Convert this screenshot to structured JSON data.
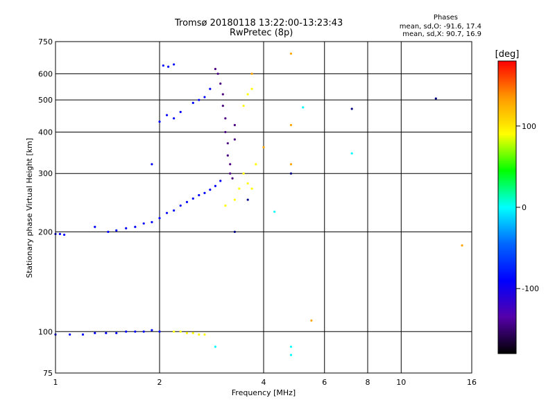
{
  "chart_data": {
    "type": "scatter",
    "title": "Tromsø 20180118 13:22:00-13:23:43",
    "subtitle": "RwPretec (8p)",
    "xlabel": "Frequency [MHz]",
    "ylabel": "Stationary phase Virtual Height [km]",
    "x_scale": "log",
    "y_scale": "log",
    "xlim": [
      1,
      16
    ],
    "ylim": [
      75,
      750
    ],
    "x_ticks": [
      1,
      2,
      4,
      6,
      8,
      10,
      16
    ],
    "y_ticks": [
      75,
      100,
      200,
      300,
      400,
      500,
      600,
      750
    ],
    "grid": true,
    "stats": {
      "header": "Phases",
      "line_o": "mean, sd,O: -91.6, 17.4",
      "line_x": "mean, sd,X:  90.7, 16.9"
    },
    "colorbar": {
      "label": "[deg]",
      "range": [
        -180,
        180
      ],
      "ticks": [
        100,
        0,
        -100
      ],
      "colors": [
        "#ff0000",
        "#ff9900",
        "#ffff00",
        "#00ff00",
        "#00ffff",
        "#0066ff",
        "#0000ff",
        "#5500aa",
        "#000000"
      ]
    },
    "series": [
      {
        "color": "blue",
        "points": [
          [
            1.0,
            197
          ],
          [
            1.03,
            197
          ],
          [
            1.06,
            196
          ],
          [
            1.3,
            207
          ],
          [
            1.42,
            200
          ],
          [
            1.5,
            202
          ],
          [
            1.6,
            205
          ],
          [
            1.7,
            207
          ],
          [
            1.8,
            212
          ],
          [
            1.9,
            214
          ],
          [
            2.0,
            220
          ],
          [
            2.1,
            228
          ],
          [
            2.2,
            232
          ],
          [
            2.3,
            240
          ],
          [
            2.4,
            246
          ],
          [
            2.5,
            252
          ],
          [
            2.6,
            258
          ],
          [
            2.7,
            262
          ],
          [
            2.8,
            268
          ],
          [
            2.9,
            275
          ],
          [
            3.0,
            285
          ],
          [
            1.0,
            98
          ],
          [
            1.1,
            98
          ],
          [
            1.2,
            98
          ],
          [
            1.3,
            99
          ],
          [
            1.4,
            99
          ],
          [
            1.5,
            99
          ],
          [
            1.6,
            100
          ],
          [
            1.7,
            100
          ],
          [
            1.8,
            100
          ],
          [
            1.9,
            101
          ],
          [
            2.0,
            100
          ],
          [
            2.0,
            430
          ],
          [
            2.1,
            450
          ],
          [
            2.2,
            440
          ],
          [
            2.3,
            460
          ],
          [
            2.05,
            635
          ],
          [
            2.12,
            630
          ],
          [
            2.2,
            640
          ],
          [
            1.9,
            320
          ],
          [
            2.5,
            490
          ],
          [
            2.6,
            500
          ],
          [
            2.7,
            510
          ],
          [
            2.8,
            540
          ]
        ]
      },
      {
        "color": "indigo",
        "points": [
          [
            2.9,
            620
          ],
          [
            2.95,
            600
          ],
          [
            3.0,
            560
          ],
          [
            3.05,
            520
          ],
          [
            3.05,
            480
          ],
          [
            3.1,
            440
          ],
          [
            3.1,
            400
          ],
          [
            3.15,
            370
          ],
          [
            3.15,
            340
          ],
          [
            3.2,
            320
          ],
          [
            3.2,
            300
          ],
          [
            3.25,
            290
          ],
          [
            3.3,
            380
          ],
          [
            3.3,
            420
          ]
        ]
      },
      {
        "color": "yellow",
        "points": [
          [
            2.2,
            100
          ],
          [
            2.3,
            100
          ],
          [
            2.4,
            99
          ],
          [
            2.5,
            99
          ],
          [
            2.6,
            98
          ],
          [
            2.7,
            98
          ],
          [
            3.1,
            240
          ],
          [
            3.3,
            250
          ],
          [
            3.4,
            270
          ],
          [
            3.5,
            300
          ],
          [
            3.6,
            280
          ],
          [
            3.7,
            270
          ],
          [
            3.8,
            320
          ],
          [
            3.5,
            480
          ],
          [
            3.6,
            520
          ],
          [
            3.7,
            540
          ]
        ]
      },
      {
        "color": "orange",
        "points": [
          [
            3.7,
            600
          ],
          [
            4.0,
            360
          ],
          [
            4.8,
            690
          ],
          [
            4.8,
            420
          ],
          [
            4.8,
            320
          ],
          [
            5.5,
            108
          ],
          [
            15.0,
            182
          ]
        ]
      },
      {
        "color": "cyan",
        "points": [
          [
            2.9,
            90
          ],
          [
            4.3,
            230
          ],
          [
            4.8,
            90
          ],
          [
            4.8,
            85
          ],
          [
            5.2,
            475
          ],
          [
            7.2,
            345
          ]
        ]
      },
      {
        "color": "navy",
        "points": [
          [
            3.3,
            200
          ],
          [
            3.6,
            250
          ],
          [
            4.8,
            300
          ],
          [
            7.2,
            470
          ],
          [
            12.6,
            505
          ]
        ]
      }
    ]
  }
}
